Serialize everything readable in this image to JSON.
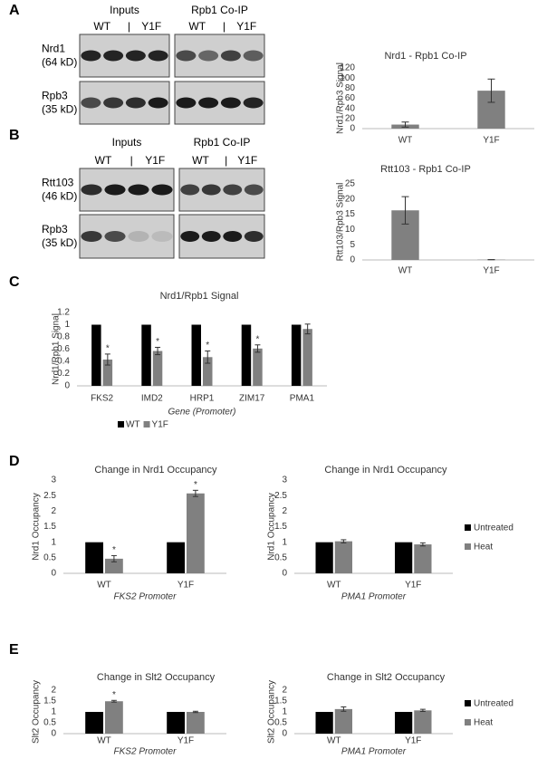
{
  "panel_labels": [
    "A",
    "B",
    "C",
    "D",
    "E"
  ],
  "blots": [
    {
      "groups": [
        {
          "title": "Inputs",
          "lanes": [
            "WT",
            "|",
            "Y1F"
          ]
        },
        {
          "title": "Rpb1 Co-IP",
          "lanes": [
            "WT",
            "|",
            "Y1F"
          ]
        }
      ],
      "rows": [
        {
          "protein": "Nrd1",
          "size": "(64 kD)"
        },
        {
          "protein": "Rpb3",
          "size": "(35 kD)"
        }
      ]
    },
    {
      "groups": [
        {
          "title": "Inputs",
          "lanes": [
            "WT",
            "|",
            "Y1F"
          ]
        },
        {
          "title": "Rpb1 Co-IP",
          "lanes": [
            "WT",
            "|",
            "Y1F"
          ]
        }
      ],
      "rows": [
        {
          "protein": "Rtt103",
          "size": "(46 kD)"
        },
        {
          "protein": "Rpb3",
          "size": "(35 kD)"
        }
      ]
    }
  ],
  "chart_data": [
    {
      "type": "bar",
      "title": "Nrd1 - Rpb1 Co-IP",
      "ylabel": "Nrd1/Rpb3 Signal",
      "categories": [
        "WT",
        "Y1F"
      ],
      "values": [
        8,
        75
      ],
      "errors": [
        5,
        23
      ],
      "color": "#808080",
      "ylim": [
        0,
        120
      ],
      "yticks": [
        0,
        20,
        40,
        60,
        80,
        100,
        120
      ],
      "grid": false
    },
    {
      "type": "bar",
      "title": "Rtt103 - Rpb1 Co-IP",
      "ylabel": "Rtt103/Rpb3 Signal",
      "categories": [
        "WT",
        "Y1F"
      ],
      "values": [
        16.3,
        0.1
      ],
      "errors": [
        4.5,
        0
      ],
      "color": "#808080",
      "ylim": [
        0,
        25
      ],
      "yticks": [
        0,
        5,
        10,
        15,
        20,
        25
      ],
      "grid": false
    },
    {
      "type": "bar",
      "title": "Nrd1/Rpb1  Signal",
      "ylabel": "Nrd1/Rpb1 Signal",
      "xlabel": "Gene (Promoter)",
      "categories": [
        "FKS2",
        "IMD2",
        "HRP1",
        "ZIM17",
        "PMA1"
      ],
      "series": [
        {
          "name": "WT",
          "color": "#000000",
          "values": [
            1,
            1,
            1,
            1,
            1
          ]
        },
        {
          "name": "Y1F",
          "color": "#808080",
          "values": [
            0.43,
            0.57,
            0.47,
            0.61,
            0.93
          ],
          "errors": [
            0.09,
            0.06,
            0.1,
            0.06,
            0.08
          ],
          "marks": [
            "*",
            "*",
            "*",
            "*",
            null
          ]
        }
      ],
      "ylim": [
        0,
        1.2
      ],
      "yticks": [
        0,
        0.2,
        0.4,
        0.6,
        0.8,
        1,
        1.2
      ],
      "legend": "bottom",
      "grid": false
    },
    {
      "type": "bar",
      "title": "Change in Nrd1 Occupancy",
      "ylabel": "Nrd1 Occupancy",
      "xlabel": "FKS2 Promoter",
      "categories": [
        "WT",
        "Y1F"
      ],
      "series": [
        {
          "color": "#000000",
          "values": [
            1,
            1
          ]
        },
        {
          "color": "#808080",
          "values": [
            0.47,
            2.57
          ],
          "errors": [
            0.1,
            0.1
          ],
          "marks": [
            "*",
            "*"
          ]
        }
      ],
      "ylim": [
        0,
        3
      ],
      "yticks": [
        0,
        0.5,
        1,
        1.5,
        2,
        2.5,
        3
      ],
      "grid": false
    },
    {
      "type": "bar",
      "title": "Change in Nrd1 Occupancy",
      "ylabel": "Nrd1 Occupancy",
      "xlabel": "PMA1 Promoter",
      "categories": [
        "WT",
        "Y1F"
      ],
      "series": [
        {
          "name": "Untreated",
          "color": "#000000",
          "values": [
            1,
            1
          ]
        },
        {
          "name": "Heat",
          "color": "#808080",
          "values": [
            1.03,
            0.93
          ],
          "errors": [
            0.05,
            0.05
          ]
        }
      ],
      "ylim": [
        0,
        3
      ],
      "yticks": [
        0,
        0.5,
        1,
        1.5,
        2,
        2.5,
        3
      ],
      "legend": "right",
      "grid": false
    },
    {
      "type": "bar",
      "title": "Change in Slt2 Occupancy",
      "ylabel": "Slt2 Occupancy",
      "xlabel": "FKS2 Promoter",
      "categories": [
        "WT",
        "Y1F"
      ],
      "series": [
        {
          "color": "#000000",
          "values": [
            1,
            1
          ]
        },
        {
          "color": "#808080",
          "values": [
            1.49,
            1.0
          ],
          "errors": [
            0.04,
            0.03
          ],
          "marks": [
            "*",
            null
          ]
        }
      ],
      "ylim": [
        0,
        2
      ],
      "yticks": [
        0,
        0.5,
        1,
        1.5,
        2
      ],
      "grid": false
    },
    {
      "type": "bar",
      "title": "Change in Slt2 Occupancy",
      "ylabel": "Slt2 Occupancy",
      "xlabel": "PMA1 Promoter",
      "categories": [
        "WT",
        "Y1F"
      ],
      "series": [
        {
          "name": "Untreated",
          "color": "#000000",
          "values": [
            1,
            1
          ]
        },
        {
          "name": "Heat",
          "color": "#808080",
          "values": [
            1.13,
            1.07
          ],
          "errors": [
            0.1,
            0.05
          ]
        }
      ],
      "ylim": [
        0,
        2
      ],
      "yticks": [
        0,
        0.5,
        1,
        1.5,
        2
      ],
      "legend": "right",
      "grid": false
    }
  ]
}
